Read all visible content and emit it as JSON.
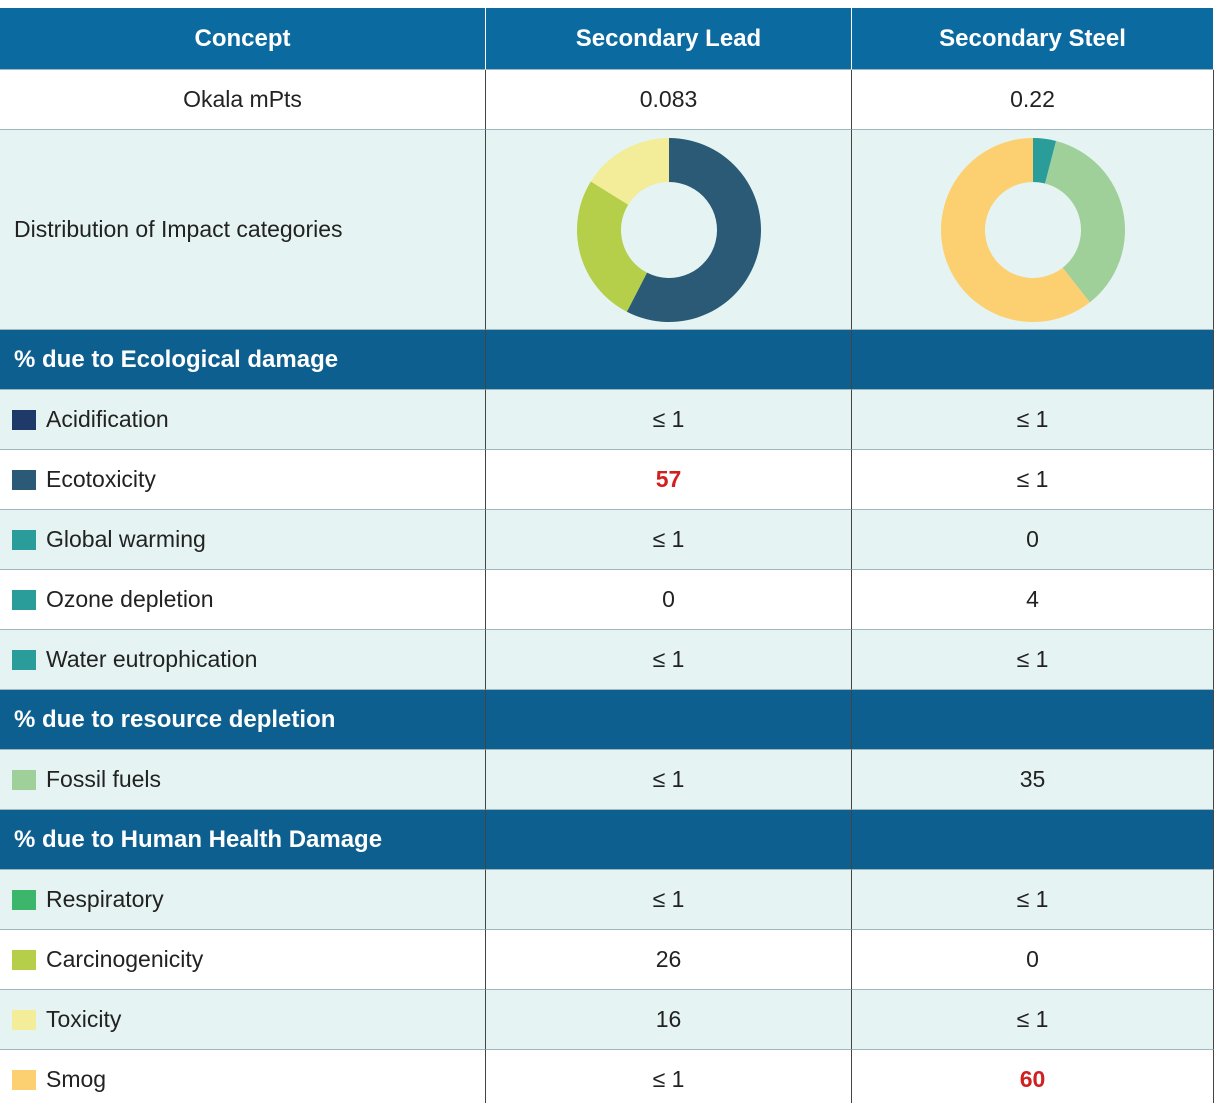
{
  "table": {
    "columns": [
      "Concept",
      "Secondary Lead",
      "Secondary Steel"
    ],
    "score": {
      "label": "Okala mPts",
      "values": [
        0.083,
        0.22
      ]
    },
    "distribution": {
      "label": "Distribution of Impact categories"
    },
    "sections": [
      {
        "title": "% due to Ecological damage",
        "rows": [
          {
            "label": "Acidification",
            "color": "#1f3a68",
            "values": [
              "≤ 1",
              "≤ 1"
            ]
          },
          {
            "label": "Ecotoxicity",
            "color": "#2a5a75",
            "values": [
              57,
              "≤ 1"
            ],
            "highlight": 0
          },
          {
            "label": "Global warming",
            "color": "#2a9d9a",
            "values": [
              "≤ 1",
              0
            ]
          },
          {
            "label": "Ozone depletion",
            "color": "#2a9d9a",
            "values": [
              0,
              4
            ]
          },
          {
            "label": "Water eutrophication",
            "color": "#2a9d9a",
            "values": [
              "≤ 1",
              "≤ 1"
            ]
          }
        ]
      },
      {
        "title": "% due to resource depletion",
        "rows": [
          {
            "label": "Fossil fuels",
            "color": "#a0d09a",
            "values": [
              "≤ 1",
              35
            ]
          }
        ]
      },
      {
        "title": "% due to Human Health Damage",
        "rows": [
          {
            "label": "Respiratory",
            "color": "#3cb66a",
            "values": [
              "≤ 1",
              "≤ 1"
            ]
          },
          {
            "label": "Carcinogenicity",
            "color": "#b5cf4a",
            "values": [
              26,
              0
            ]
          },
          {
            "label": "Toxicity",
            "color": "#f3ec98",
            "values": [
              16,
              "≤ 1"
            ]
          },
          {
            "label": "Smog",
            "color": "#fcd070",
            "values": [
              "≤ 1",
              60
            ],
            "highlight": 1
          }
        ]
      }
    ]
  }
}
